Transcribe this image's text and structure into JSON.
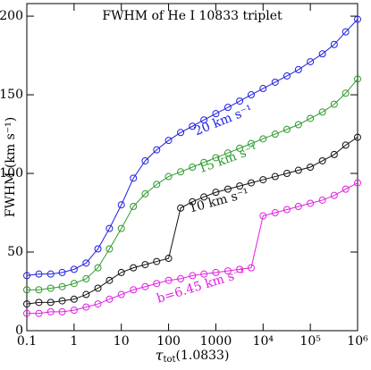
{
  "chart_data": {
    "type": "line",
    "title": "FWHM of He I 10833 triplet",
    "xlabel": [
      "τ",
      "tot",
      "(1.0833)"
    ],
    "ylabel": "FWHM (km s⁻¹)",
    "log_x": true,
    "xlim": [
      0.1,
      1000000
    ],
    "ylim": [
      0,
      208
    ],
    "xticks": [
      0.1,
      1,
      10,
      100,
      1000,
      {
        "value": 10000,
        "label": "10⁴"
      },
      {
        "value": 100000,
        "label": "10⁵"
      },
      {
        "value": 1000000,
        "label": "10⁶"
      }
    ],
    "yticks": [
      0,
      50,
      100,
      150,
      200
    ],
    "x": [
      0.1,
      0.18,
      0.32,
      0.56,
      1,
      1.8,
      3.2,
      5.6,
      10,
      18,
      32,
      56,
      100,
      180,
      320,
      560,
      1000,
      1800,
      3200,
      5600,
      10000,
      18000,
      32000,
      56000,
      100000,
      180000,
      320000,
      560000,
      1000000
    ],
    "series": [
      {
        "name": "20 km s⁻¹",
        "color": "#1f1fe0",
        "values": [
          35,
          36,
          36,
          37,
          39,
          43,
          52,
          65,
          80,
          97,
          108,
          115,
          121,
          126,
          130,
          134,
          138,
          142,
          146,
          150,
          154,
          158,
          162,
          166,
          171,
          176,
          182,
          190,
          198
        ]
      },
      {
        "name": "15 km s⁻¹",
        "color": "#2e9a2e",
        "values": [
          26,
          26,
          27,
          28,
          30,
          33,
          40,
          52,
          65,
          79,
          87,
          93,
          98,
          101,
          104,
          107,
          110,
          113,
          116,
          119,
          122,
          125,
          128,
          131,
          135,
          139,
          144,
          151,
          160
        ]
      },
      {
        "name": "10 km s⁻¹",
        "color": "#111111",
        "values": [
          17,
          18,
          18,
          19,
          20,
          23,
          27,
          32,
          37,
          40,
          42,
          44,
          46,
          78,
          82,
          85,
          88,
          90,
          92,
          94,
          96,
          98,
          100,
          102,
          104,
          108,
          112,
          118,
          123
        ]
      },
      {
        "name": "b=6.45 km s⁻¹",
        "color": "#e020e0",
        "values": [
          11,
          11,
          12,
          12,
          13,
          15,
          17,
          20,
          23,
          26,
          28,
          30,
          32,
          33,
          35,
          36,
          37,
          38,
          39,
          40,
          73,
          75,
          77,
          79,
          81,
          83,
          86,
          90,
          94
        ]
      }
    ]
  }
}
